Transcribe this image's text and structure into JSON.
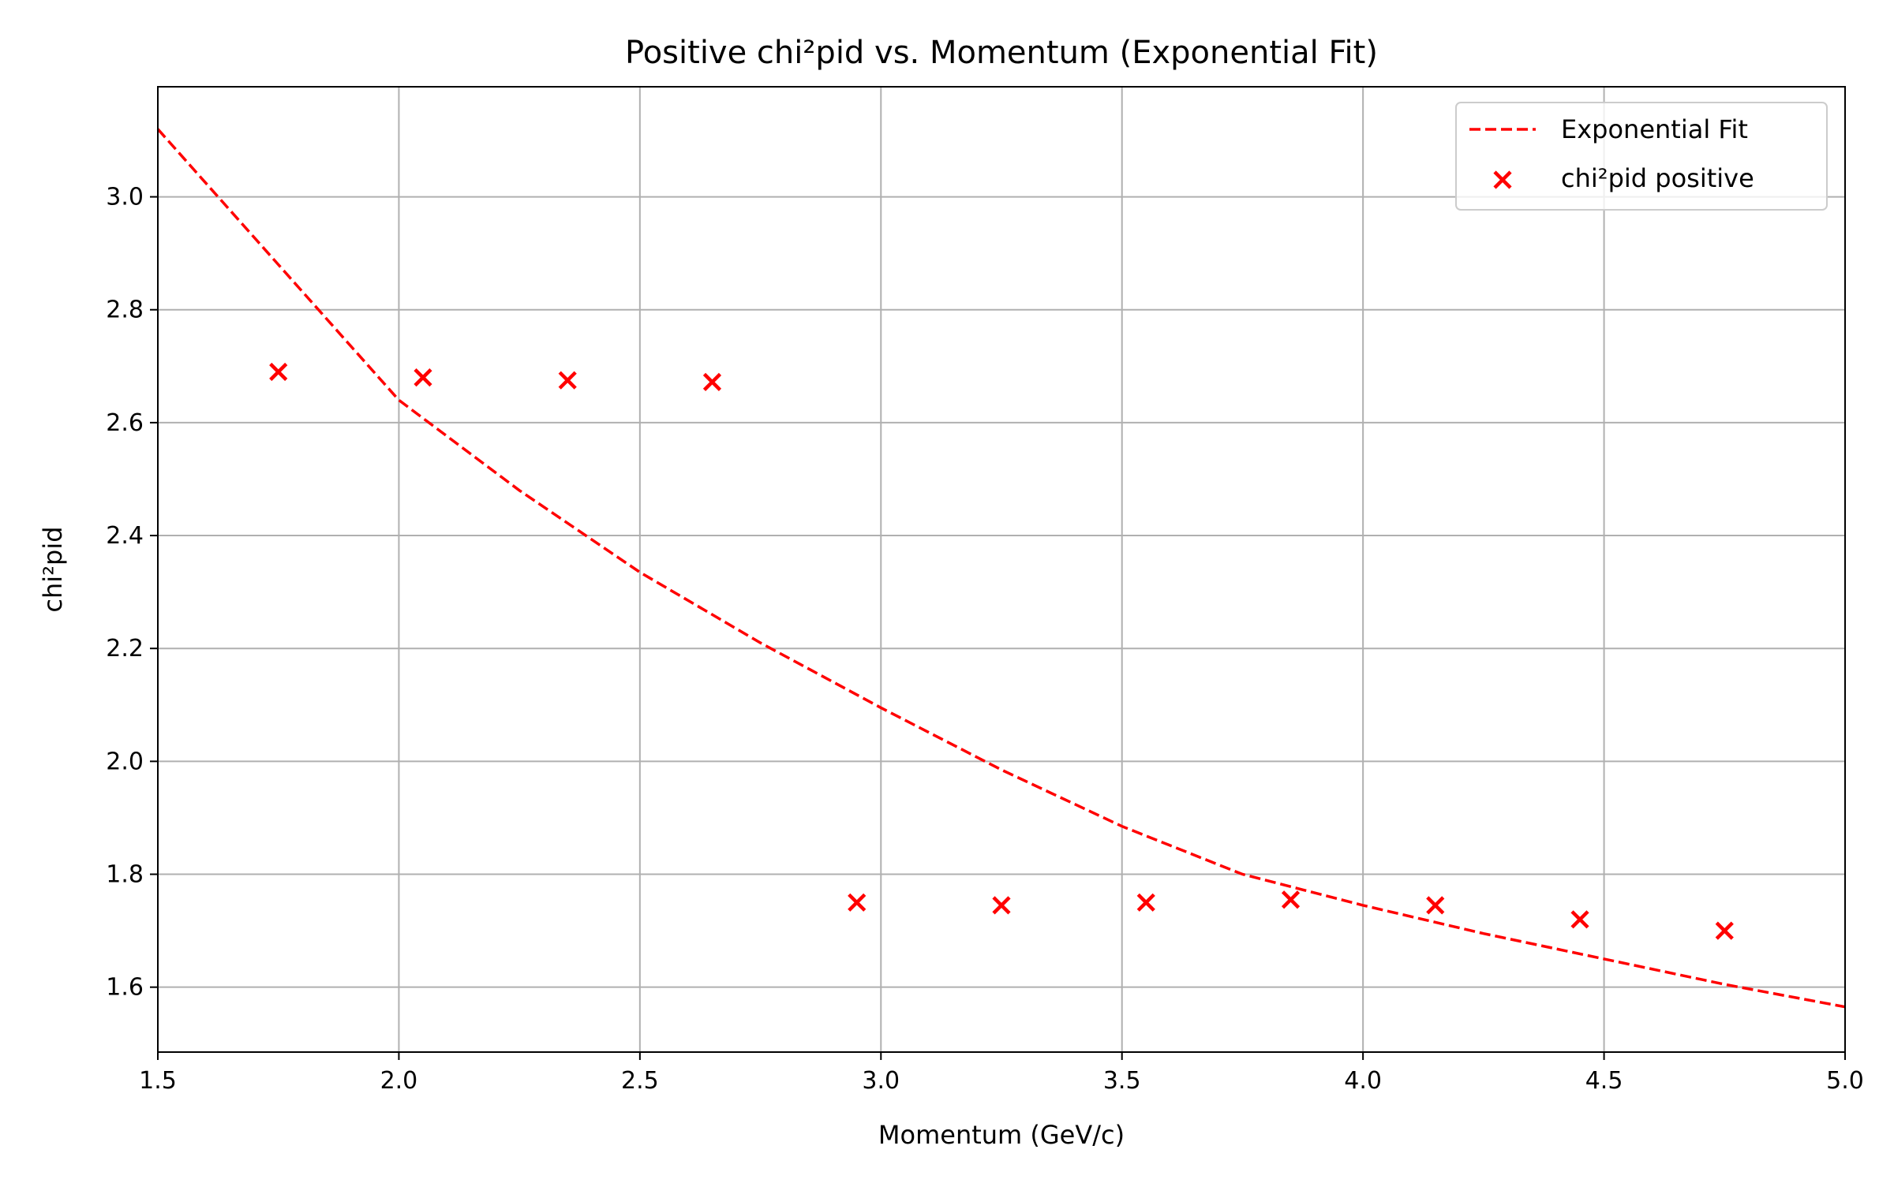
{
  "chart_data": {
    "type": "scatter",
    "title": "Positive chi²pid vs. Momentum (Exponential Fit)",
    "xlabel": "Momentum (GeV/c)",
    "ylabel": "chi²pid",
    "xlim": [
      1.5,
      5.0
    ],
    "ylim": [
      1.485,
      3.195
    ],
    "x_ticks": [
      "1.5",
      "2.0",
      "2.5",
      "3.0",
      "3.5",
      "4.0",
      "4.5",
      "5.0"
    ],
    "y_ticks": [
      "1.6",
      "1.8",
      "2.0",
      "2.2",
      "2.4",
      "2.6",
      "2.8",
      "3.0"
    ],
    "grid": true,
    "legend_position": "top-right",
    "color": "#ff0000",
    "series": [
      {
        "name": "Exponential Fit",
        "kind": "line",
        "style": "dashed",
        "x": [
          1.5,
          1.75,
          2.0,
          2.25,
          2.5,
          2.75,
          3.0,
          3.25,
          3.5,
          3.75,
          4.0,
          4.25,
          4.5,
          4.75,
          5.0
        ],
        "y": [
          3.12,
          2.88,
          2.64,
          2.48,
          2.335,
          2.21,
          2.095,
          1.985,
          1.885,
          1.8,
          1.745,
          1.695,
          1.65,
          1.605,
          1.565
        ]
      },
      {
        "name": "chi²pid positive",
        "kind": "scatter",
        "marker": "x",
        "x": [
          1.75,
          2.05,
          2.35,
          2.65,
          2.95,
          3.25,
          3.55,
          3.85,
          4.15,
          4.45,
          4.75
        ],
        "y": [
          2.69,
          2.68,
          2.675,
          2.672,
          1.75,
          1.745,
          1.75,
          1.755,
          1.745,
          1.72,
          1.7
        ]
      }
    ]
  }
}
